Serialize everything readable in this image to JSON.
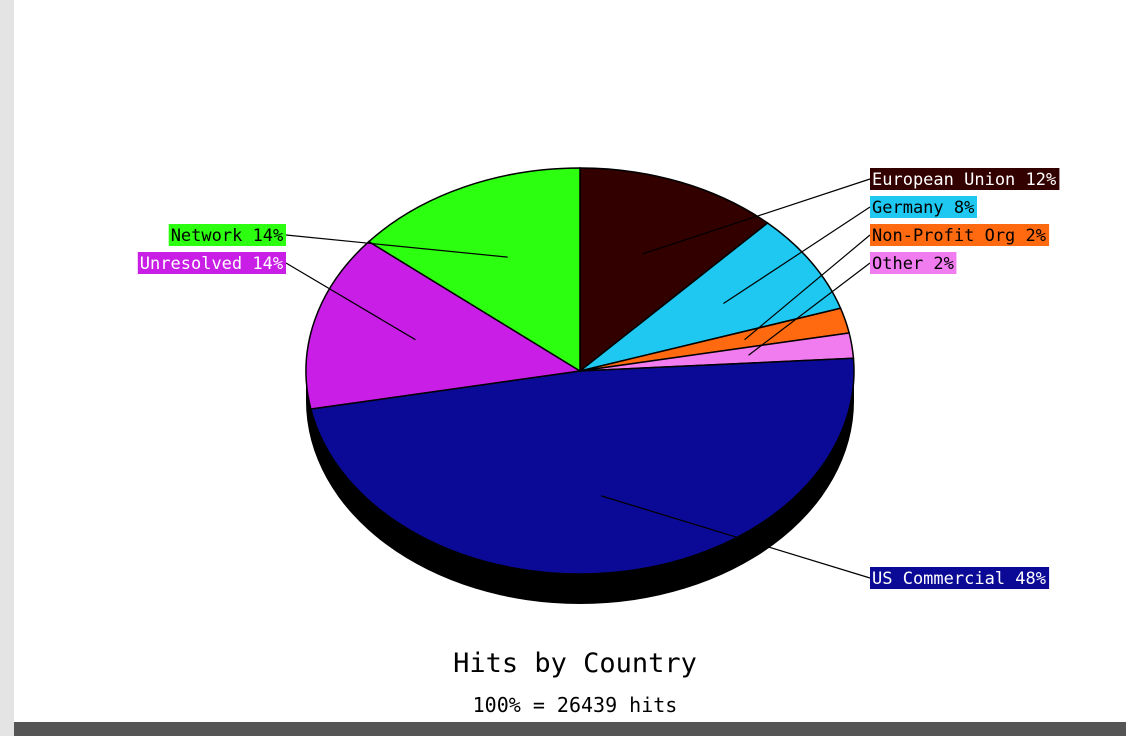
{
  "chart_data": {
    "type": "pie",
    "title": "Hits by Country",
    "subtitle": "100% = 26439 hits",
    "slices": [
      {
        "label": "European Union 12%",
        "name": "European Union",
        "value": 12,
        "color": "#330000",
        "text_color": "#ffffff"
      },
      {
        "label": "Germany 8%",
        "name": "Germany",
        "value": 8,
        "color": "#1ec8f0",
        "text_color": "#000000"
      },
      {
        "label": "Non-Profit Org 2%",
        "name": "Non-Profit Org",
        "value": 2,
        "color": "#ff6a10",
        "text_color": "#000000"
      },
      {
        "label": "Other 2%",
        "name": "Other",
        "value": 2,
        "color": "#f07cf0",
        "text_color": "#000000"
      },
      {
        "label": "US Commercial 48%",
        "name": "US Commercial",
        "value": 48,
        "color": "#0a0a96",
        "text_color": "#ffffff"
      },
      {
        "label": "Unresolved 14%",
        "name": "Unresolved",
        "value": 14,
        "color": "#c81ee6",
        "text_color": "#ffffff"
      },
      {
        "label": "Network 14%",
        "name": "Network",
        "value": 14,
        "color": "#2cff10",
        "text_color": "#000000"
      }
    ]
  }
}
